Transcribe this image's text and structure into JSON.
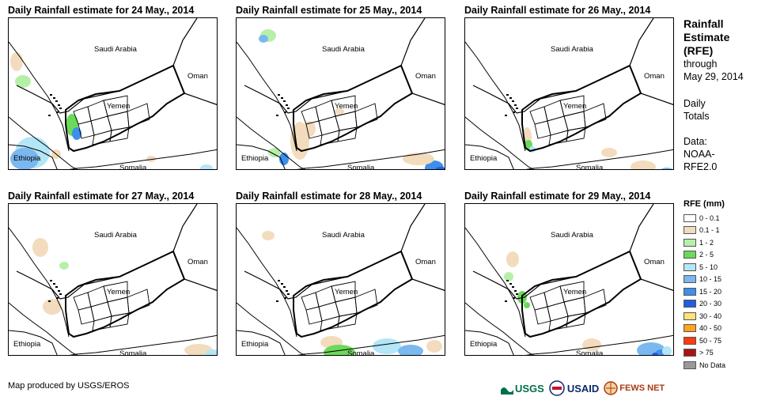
{
  "panels": [
    {
      "title": "Daily Rainfall estimate for 24 May., 2014"
    },
    {
      "title": "Daily Rainfall estimate for 25 May., 2014"
    },
    {
      "title": "Daily Rainfall estimate for 26 May., 2014"
    },
    {
      "title": "Daily Rainfall estimate for 27 May., 2014"
    },
    {
      "title": "Daily Rainfall estimate for 28 May., 2014"
    },
    {
      "title": "Daily Rainfall estimate for 29 May., 2014"
    }
  ],
  "map_labels": {
    "saudi": "Saudi Arabia",
    "oman": "Oman",
    "yemen": "Yemen",
    "ethiopia": "Ethiopia",
    "somalia": "Somalia"
  },
  "sidebar": {
    "title_line1": "Rainfall",
    "title_line2": "Estimate",
    "title_line3": "(RFE)",
    "through": "through",
    "date": "May 29, 2014",
    "daily1": "Daily",
    "daily2": "Totals",
    "data1": "Data:",
    "data2": "NOAA-",
    "data3": "RFE2.0"
  },
  "legend": {
    "title": "RFE (mm)",
    "items": [
      {
        "label": "0 - 0.1",
        "color": "#ffffff"
      },
      {
        "label": "0.1 - 1",
        "color": "#f2dcbd"
      },
      {
        "label": "1 - 2",
        "color": "#b6f0a8"
      },
      {
        "label": "2 - 5",
        "color": "#6bd95a"
      },
      {
        "label": "5 - 10",
        "color": "#b3e6f7"
      },
      {
        "label": "10 - 15",
        "color": "#7ab8ef"
      },
      {
        "label": "15 - 20",
        "color": "#3d8fea"
      },
      {
        "label": "20 - 30",
        "color": "#1f5fe0"
      },
      {
        "label": "30 - 40",
        "color": "#ffe27a"
      },
      {
        "label": "40 - 50",
        "color": "#ffa41c"
      },
      {
        "label": "50 - 75",
        "color": "#ff3b10"
      },
      {
        "label": "> 75",
        "color": "#a61616"
      },
      {
        "label": "No Data",
        "color": "#999999"
      }
    ]
  },
  "credit": "Map produced by USGS/EROS",
  "logos": {
    "usgs": "USGS",
    "usaid": "USAID",
    "fews": "FEWS NET"
  },
  "rain_colors": {
    "light": "#f2dcbd",
    "green_light": "#b6f0a8",
    "green": "#6bd95a",
    "cyan": "#b3e6f7",
    "blue_light": "#7ab8ef",
    "blue": "#3d8fea",
    "blue_dark": "#1f5fe0"
  }
}
